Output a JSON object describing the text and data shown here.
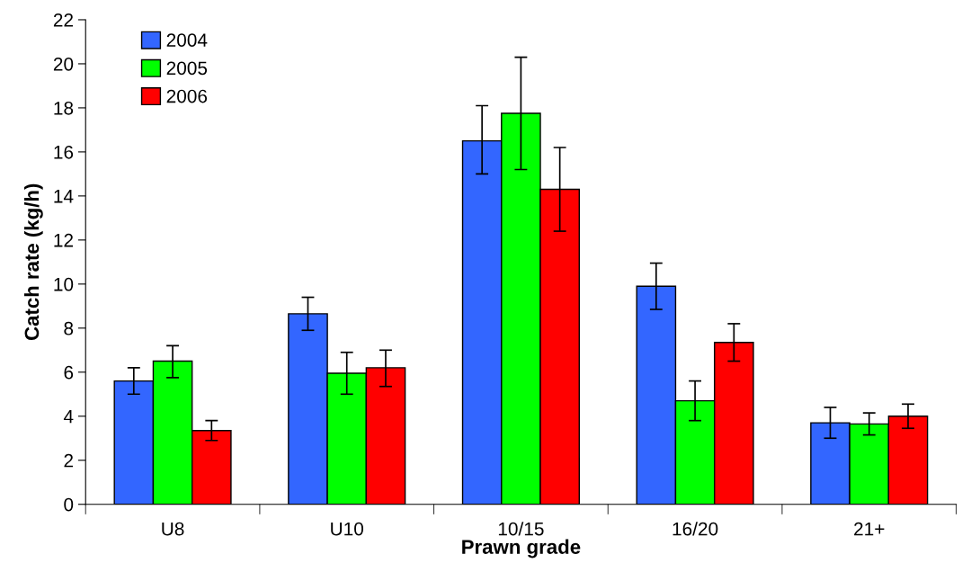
{
  "chart_data": {
    "type": "bar",
    "xlabel": "Prawn grade",
    "ylabel": "Catch rate (kg/h)",
    "categories": [
      "U8",
      "U10",
      "10/15",
      "16/20",
      "21+"
    ],
    "series": [
      {
        "name": "2004",
        "color": "#3366ff",
        "values": [
          5.6,
          8.65,
          16.5,
          9.9,
          3.7
        ],
        "errors": [
          [
            5.0,
            6.2
          ],
          [
            7.9,
            9.4
          ],
          [
            15.0,
            18.1
          ],
          [
            8.85,
            10.95
          ],
          [
            3.0,
            4.4
          ]
        ]
      },
      {
        "name": "2005",
        "color": "#00ff00",
        "values": [
          6.5,
          5.95,
          17.75,
          4.7,
          3.65
        ],
        "errors": [
          [
            5.75,
            7.2
          ],
          [
            5.0,
            6.9
          ],
          [
            15.2,
            20.3
          ],
          [
            3.8,
            5.6
          ],
          [
            3.15,
            4.15
          ]
        ]
      },
      {
        "name": "2006",
        "color": "#ff0000",
        "values": [
          3.35,
          6.2,
          14.3,
          7.35,
          4.0
        ],
        "errors": [
          [
            2.9,
            3.8
          ],
          [
            5.35,
            7.0
          ],
          [
            12.4,
            16.2
          ],
          [
            6.5,
            8.2
          ],
          [
            3.45,
            4.55
          ]
        ]
      }
    ],
    "ylim": [
      0,
      22
    ],
    "yticks": [
      0,
      2,
      4,
      6,
      8,
      10,
      12,
      14,
      16,
      18,
      20,
      22
    ],
    "grid": false,
    "legend": "top left"
  }
}
